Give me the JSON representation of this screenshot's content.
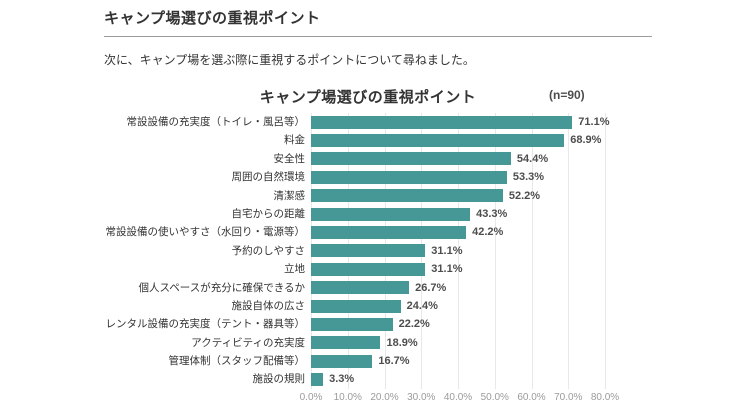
{
  "page": {
    "header_title": "キャンプ場選びの重視ポイント",
    "subtitle": "次に、キャンプ場を選ぶ際に重視するポイントについて尋ねました。"
  },
  "chart": {
    "title": "キャンプ場選びの重視ポイント",
    "sample_label": "(n=90)"
  },
  "chart_data": {
    "type": "bar",
    "orientation": "horizontal",
    "title": "キャンプ場選びの重視ポイント",
    "sample_size": 90,
    "categories": [
      "常設設備の充実度（トイレ・風呂等）",
      "料金",
      "安全性",
      "周囲の自然環境",
      "清潔感",
      "自宅からの距離",
      "常設設備の使いやすさ（水回り・電源等）",
      "予約のしやすさ",
      "立地",
      "個人スペースが充分に確保できるか",
      "施設自体の広さ",
      "レンタル設備の充実度（テント・器具等）",
      "アクティビティの充実度",
      "管理体制（スタッフ配備等）",
      "施設の規則"
    ],
    "values": [
      71.1,
      68.9,
      54.4,
      53.3,
      52.2,
      43.3,
      42.2,
      31.1,
      31.1,
      26.7,
      24.4,
      22.2,
      18.9,
      16.7,
      3.3
    ],
    "value_labels": [
      "71.1%",
      "68.9%",
      "54.4%",
      "53.3%",
      "52.2%",
      "43.3%",
      "42.2%",
      "31.1%",
      "31.1%",
      "26.7%",
      "24.4%",
      "22.2%",
      "18.9%",
      "16.7%",
      "3.3%"
    ],
    "xlabel": "",
    "ylabel": "",
    "xlim": [
      0,
      80
    ],
    "x_ticks": [
      "0.0%",
      "10.0%",
      "20.0%",
      "30.0%",
      "40.0%",
      "50.0%",
      "60.0%",
      "70.0%",
      "80.0%"
    ],
    "grid": true,
    "legend": false,
    "bar_color": "#469897"
  },
  "colors": {
    "bar": "#469897",
    "header_text": "#333333",
    "value_label": "#4d4d4d",
    "tick_label": "#9b9b9b",
    "gridline": "#e8e8e8",
    "rule": "#9b9b9b",
    "background": "#ffffff"
  }
}
